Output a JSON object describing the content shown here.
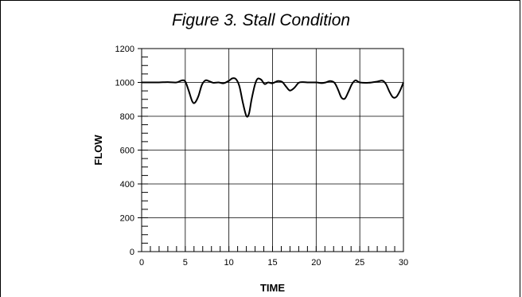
{
  "chart_data": {
    "type": "line",
    "title": "Figure 3. Stall Condition",
    "xlabel": "TIME",
    "ylabel": "FLOW",
    "xlim": [
      0,
      30
    ],
    "ylim": [
      0,
      1200
    ],
    "x_ticks": [
      0,
      5,
      10,
      15,
      20,
      25,
      30
    ],
    "y_ticks": [
      0,
      200,
      400,
      600,
      800,
      1000,
      1200
    ],
    "x_minor_step": 1,
    "y_minor_step": 50,
    "grid": true,
    "series": [
      {
        "x": [
          0,
          1,
          2,
          3,
          4,
          4.6,
          5,
          5.4,
          5.8,
          6.1,
          6.5,
          6.9,
          7.3,
          7.7,
          8.2,
          8.8,
          9.4,
          10,
          10.4,
          10.8,
          11.2,
          11.6,
          12,
          12.3,
          12.6,
          13,
          13.3,
          13.7,
          14.1,
          14.5,
          15,
          15.6,
          16.1,
          16.6,
          17,
          17.5,
          18,
          18.5,
          19,
          20,
          20.6,
          21.1,
          21.6,
          22.1,
          22.5,
          22.9,
          23.3,
          23.7,
          24.1,
          24.5,
          25,
          26,
          27,
          27.6,
          28,
          28.4,
          28.8,
          29.2,
          29.6,
          30
        ],
        "y": [
          1000,
          1000,
          1000,
          1002,
          1000,
          1012,
          1005,
          950,
          888,
          880,
          918,
          985,
          1012,
          1008,
          998,
          1000,
          995,
          1010,
          1024,
          1020,
          978,
          880,
          802,
          815,
          900,
          990,
          1022,
          1016,
          990,
          1000,
          995,
          1008,
          1003,
          972,
          952,
          968,
          998,
          1002,
          1000,
          1000,
          996,
          1000,
          1008,
          998,
          958,
          910,
          905,
          945,
          990,
          1012,
          1000,
          998,
          1005,
          1010,
          990,
          945,
          912,
          915,
          950,
          1000
        ]
      }
    ]
  }
}
